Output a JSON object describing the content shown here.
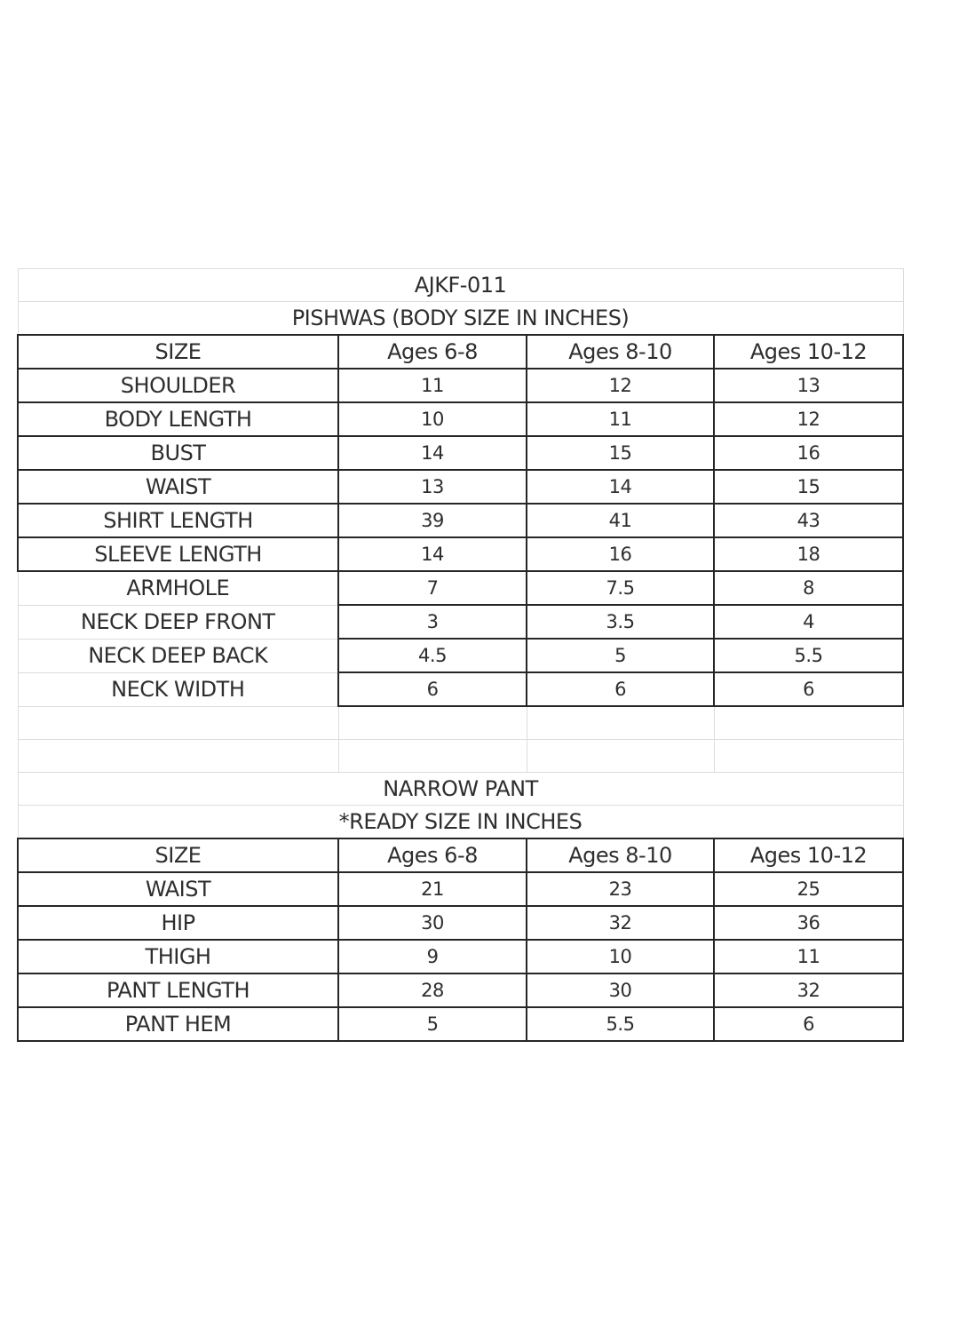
{
  "product_code": "AJKF-011",
  "pishwas": {
    "title": "PISHWAS (BODY SIZE IN INCHES)",
    "header": [
      "SIZE",
      "Ages 6-8",
      "Ages 8-10",
      "Ages 10-12"
    ],
    "rows": [
      {
        "label": "SHOULDER",
        "values": [
          "11",
          "12",
          "13"
        ]
      },
      {
        "label": "BODY LENGTH",
        "values": [
          "10",
          "11",
          "12"
        ]
      },
      {
        "label": "BUST",
        "values": [
          "14",
          "15",
          "16"
        ]
      },
      {
        "label": "WAIST",
        "values": [
          "13",
          "14",
          "15"
        ]
      },
      {
        "label": "SHIRT LENGTH",
        "values": [
          "39",
          "41",
          "43"
        ]
      },
      {
        "label": "SLEEVE LENGTH",
        "values": [
          "14",
          "16",
          "18"
        ]
      },
      {
        "label": "ARMHOLE",
        "values": [
          "7",
          "7.5",
          "8"
        ]
      },
      {
        "label": "NECK DEEP FRONT",
        "values": [
          "3",
          "3.5",
          "4"
        ]
      },
      {
        "label": "NECK DEEP BACK",
        "values": [
          "4.5",
          "5",
          "5.5"
        ]
      },
      {
        "label": "NECK WIDTH",
        "values": [
          "6",
          "6",
          "6"
        ]
      }
    ]
  },
  "pant": {
    "title": "NARROW PANT",
    "subtitle": "*READY SIZE IN INCHES",
    "header": [
      "SIZE",
      "Ages 6-8",
      "Ages 8-10",
      "Ages 10-12"
    ],
    "rows": [
      {
        "label": "WAIST",
        "values": [
          "21",
          "23",
          "25"
        ]
      },
      {
        "label": "HIP",
        "values": [
          "30",
          "32",
          "36"
        ]
      },
      {
        "label": "THIGH",
        "values": [
          "9",
          "10",
          "11"
        ]
      },
      {
        "label": "PANT LENGTH",
        "values": [
          "28",
          "30",
          "32"
        ]
      },
      {
        "label": "PANT HEM",
        "values": [
          "5",
          "5.5",
          "6"
        ]
      }
    ]
  }
}
